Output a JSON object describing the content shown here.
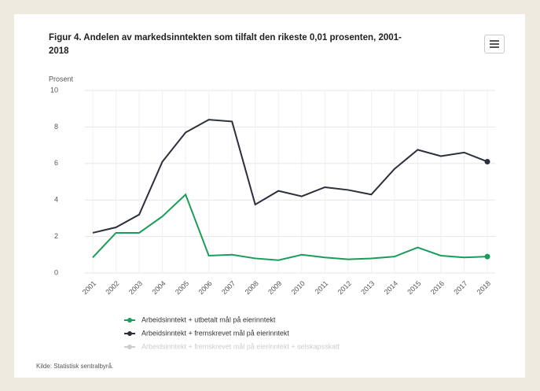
{
  "chart_data": {
    "type": "line",
    "title": "Figur 4. Andelen av markedsinntekten som tilfalt den rikeste 0,01 prosenten, 2001-2018",
    "y_label": "Prosent",
    "source": "Kilde: Statistisk sentralbyrå.",
    "categories": [
      "2001",
      "2002",
      "2003",
      "2004",
      "2005",
      "2006",
      "2007",
      "2008",
      "2009",
      "2010",
      "2011",
      "2012",
      "2013",
      "2014",
      "2015",
      "2016",
      "2017",
      "2018"
    ],
    "series": [
      {
        "name": "Arbeidsinntekt + utbetalt mål på eierinntekt",
        "color": "#1a9d5a",
        "visible": true,
        "values": [
          0.85,
          2.2,
          2.2,
          3.1,
          4.3,
          0.95,
          1.0,
          0.8,
          0.7,
          1.0,
          0.85,
          0.75,
          0.8,
          0.9,
          1.4,
          0.95,
          0.85,
          0.9
        ]
      },
      {
        "name": "Arbeidsinntekt + fremskrevet mål på eierinntekt",
        "color": "#2b2f3a",
        "visible": true,
        "values": [
          2.2,
          2.5,
          3.2,
          6.1,
          7.7,
          8.4,
          8.3,
          3.75,
          4.5,
          4.2,
          4.7,
          4.55,
          4.3,
          5.7,
          6.75,
          6.4,
          6.6,
          6.1
        ]
      },
      {
        "name": "Arbeidsinntekt + fremskrevet mål på eierinntekt + selskapsskatt",
        "color": "#cccccc",
        "visible": false,
        "values": [
          null,
          null,
          null,
          null,
          null,
          null,
          null,
          null,
          null,
          null,
          null,
          null,
          null,
          null,
          null,
          null,
          null,
          null
        ]
      }
    ],
    "ylim": [
      0,
      10
    ],
    "yticks": [
      0,
      2,
      4,
      6,
      8,
      10
    ],
    "grid": true
  }
}
